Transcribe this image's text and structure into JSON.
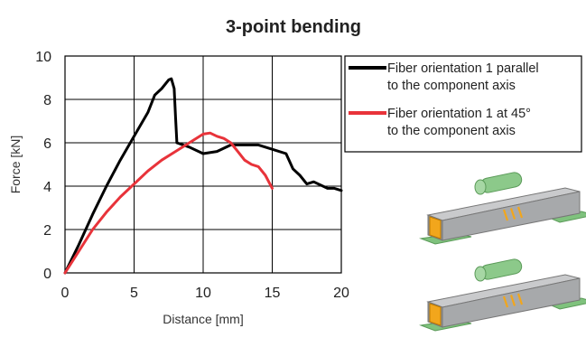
{
  "chart_data": {
    "type": "line",
    "title": "3-point bending",
    "xlabel": "Distance [mm]",
    "ylabel": "Force [kN]",
    "xlim": [
      0,
      20
    ],
    "ylim": [
      0,
      10
    ],
    "x_ticks": [
      "0",
      "5",
      "10",
      "15",
      "20"
    ],
    "y_ticks": [
      "0",
      "2",
      "4",
      "6",
      "8",
      "10"
    ],
    "grid": true,
    "legend_position": "top-right",
    "series": [
      {
        "name": "Fiber orientation 1 parallel to the component axis",
        "name_lines": [
          "Fiber orientation 1 parallel",
          "to the component axis"
        ],
        "color": "#000000",
        "x": [
          0,
          1,
          2,
          3,
          4,
          5,
          6,
          6.5,
          7,
          7.5,
          7.7,
          7.9,
          8.0,
          8.1,
          9,
          10,
          11,
          12,
          13,
          14,
          15,
          16,
          16.5,
          17,
          17.5,
          18,
          19,
          19.5,
          20
        ],
        "y": [
          0,
          1.3,
          2.7,
          4.0,
          5.2,
          6.3,
          7.4,
          8.2,
          8.5,
          8.9,
          8.95,
          8.5,
          7.2,
          6.0,
          5.8,
          5.5,
          5.6,
          5.9,
          5.9,
          5.9,
          5.7,
          5.5,
          4.8,
          4.5,
          4.1,
          4.2,
          3.9,
          3.9,
          3.8
        ]
      },
      {
        "name": "Fiber orientation 1 at 45° to the component axis",
        "name_lines": [
          "Fiber orientation 1 at 45°",
          "to the component axis"
        ],
        "color": "#e8333a",
        "x": [
          0,
          1,
          2,
          3,
          4,
          5,
          6,
          7,
          8,
          9,
          10,
          10.5,
          11,
          11.5,
          12,
          12.5,
          13,
          13.5,
          14,
          14.5,
          15
        ],
        "y": [
          0,
          1.0,
          2.0,
          2.8,
          3.5,
          4.1,
          4.7,
          5.2,
          5.6,
          6.0,
          6.4,
          6.45,
          6.3,
          6.2,
          6.0,
          5.6,
          5.2,
          5.0,
          4.9,
          4.5,
          3.9
        ]
      }
    ],
    "illustration": {
      "description_icon": "3-point-bending-specimen-icon",
      "colors": {
        "beam": "#a7a9ab",
        "roller": "#8cc98a",
        "support": "#7fc27d",
        "clamp": "#f2a61c"
      }
    }
  }
}
